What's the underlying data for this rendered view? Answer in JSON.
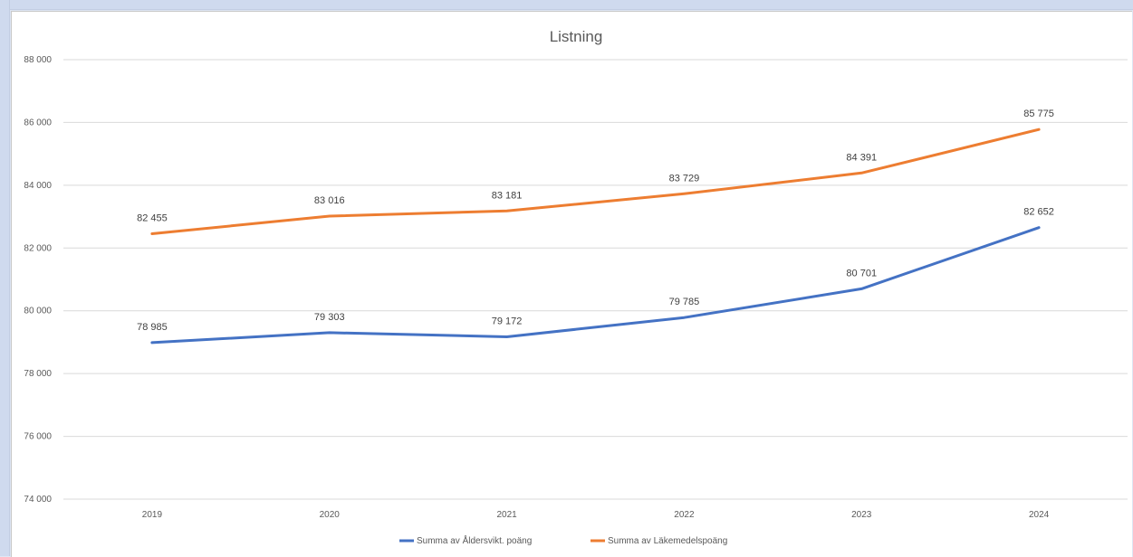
{
  "chart_data": {
    "type": "line",
    "title": "Listning",
    "xlabel": "",
    "ylabel": "",
    "categories": [
      "2019",
      "2020",
      "2021",
      "2022",
      "2023",
      "2024"
    ],
    "ylim": [
      74000,
      88000
    ],
    "yticks": [
      74000,
      76000,
      78000,
      80000,
      82000,
      84000,
      86000,
      88000
    ],
    "ytick_labels": [
      "74 000",
      "76 000",
      "78 000",
      "80 000",
      "82 000",
      "84 000",
      "86 000",
      "88 000"
    ],
    "grid": true,
    "legend_position": "bottom",
    "series": [
      {
        "name": "Summa av Åldersvikt. poäng",
        "color": "#4472c4",
        "values": [
          78985,
          79303,
          79172,
          79785,
          80701,
          82652
        ],
        "labels": [
          "78 985",
          "79 303",
          "79 172",
          "79 785",
          "80 701",
          "82 652"
        ]
      },
      {
        "name": "Summa av Läkemedelspoäng",
        "color": "#ed7d31",
        "values": [
          82455,
          83016,
          83181,
          83729,
          84391,
          85775
        ],
        "labels": [
          "82 455",
          "83 016",
          "83 181",
          "83 729",
          "84 391",
          "85 775"
        ]
      }
    ]
  }
}
